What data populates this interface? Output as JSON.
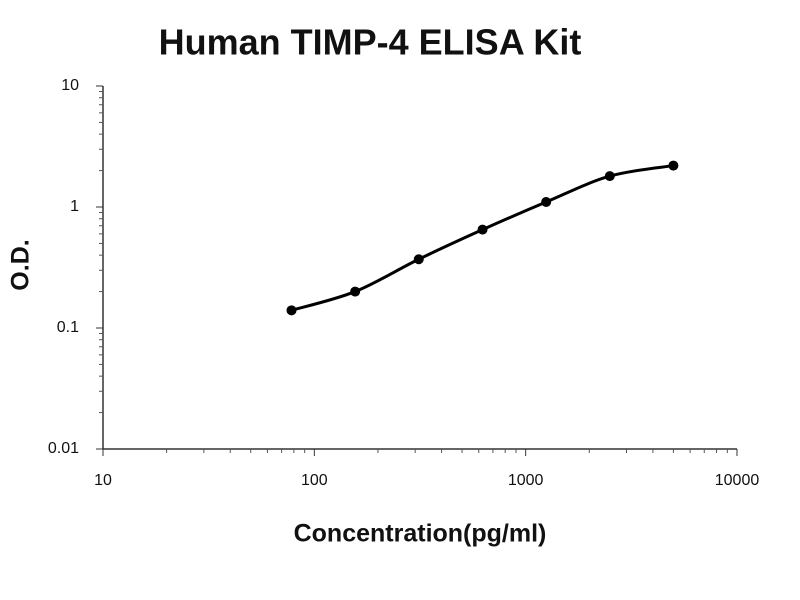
{
  "chart_data": {
    "type": "line",
    "title": "Human TIMP-4 ELISA Kit",
    "x_label": "Concentration(pg/ml)",
    "y_label": "O.D.",
    "x": [
      78,
      156,
      312,
      625,
      1250,
      2500,
      5000
    ],
    "values": [
      0.14,
      0.2,
      0.37,
      0.65,
      1.1,
      1.8,
      2.2
    ],
    "color": "#000000",
    "x_log": true,
    "y_log": true,
    "xlim": [
      10,
      10000
    ],
    "xticks": [
      10,
      100,
      1000,
      10000
    ],
    "ylim": [
      0.01,
      10
    ],
    "yticks": [
      0.01,
      0.1,
      1,
      10
    ]
  }
}
